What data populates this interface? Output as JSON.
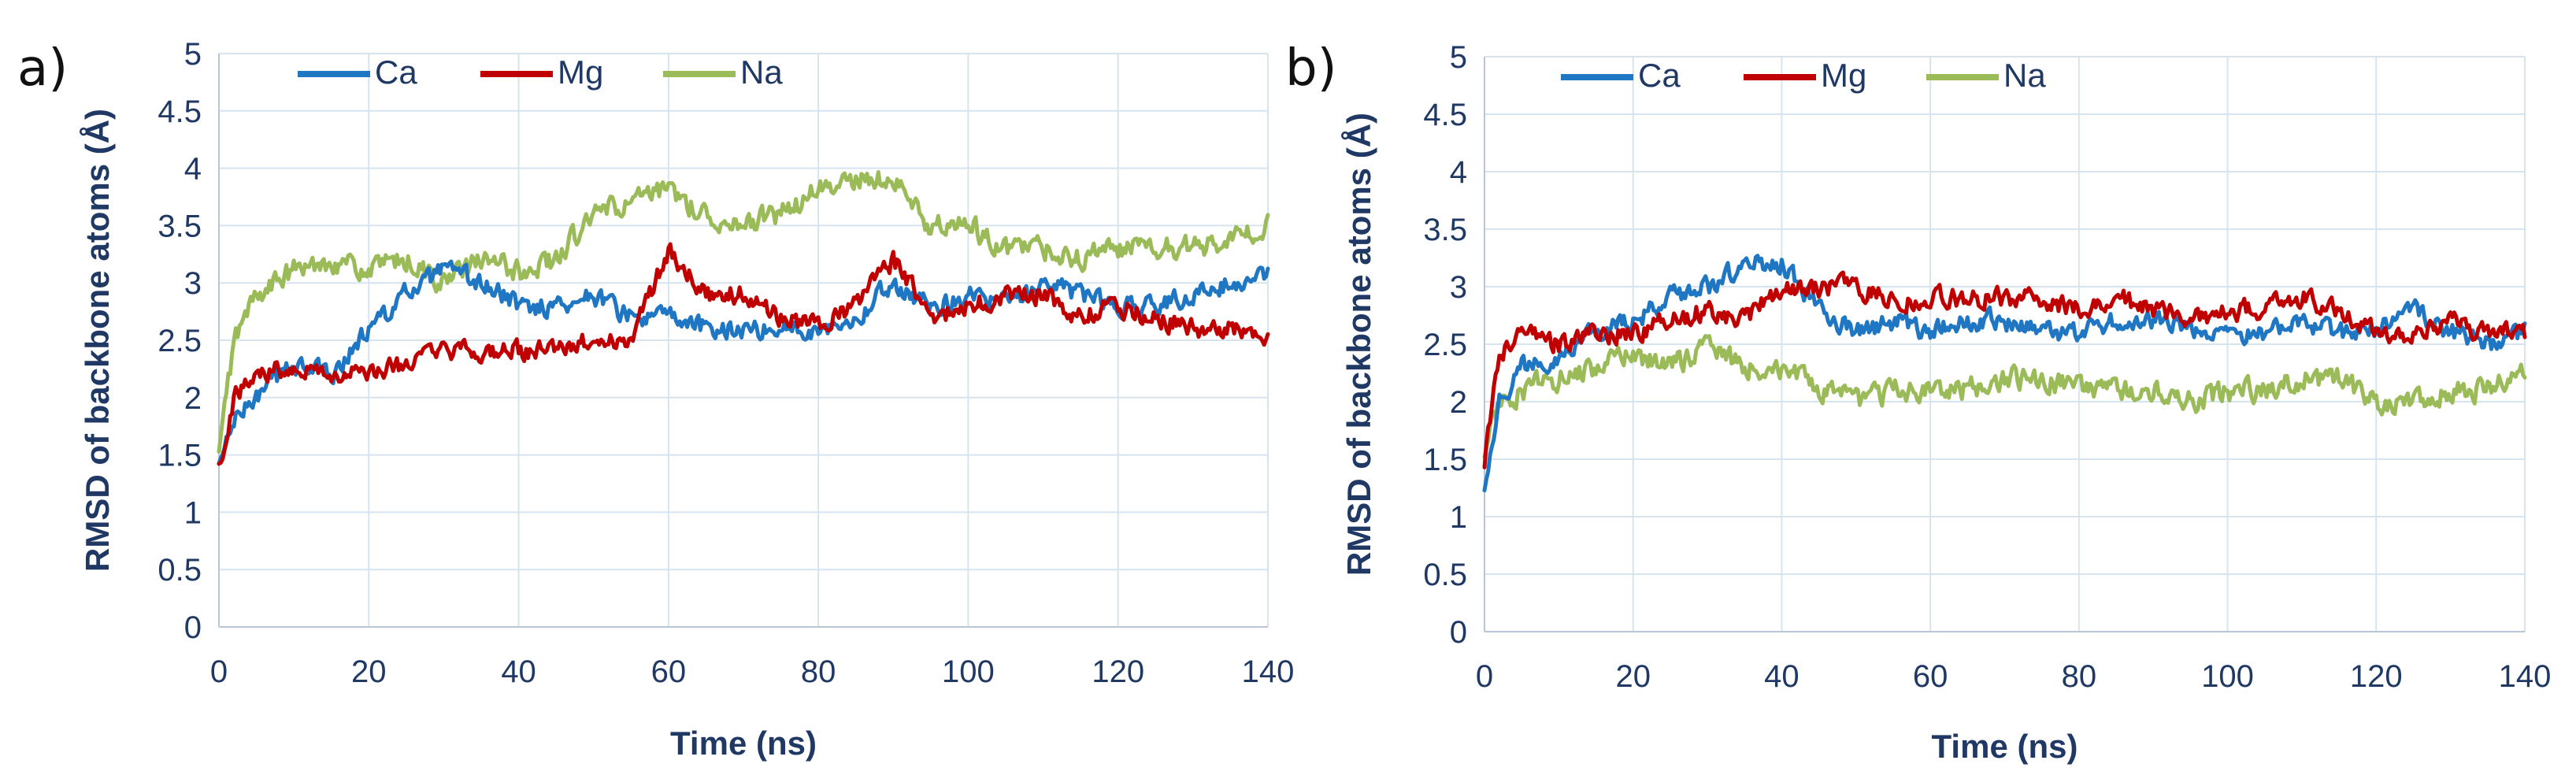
{
  "chart_data": [
    {
      "type": "line",
      "panel_label": "a)",
      "xlabel": "Time (ns)",
      "ylabel": "RMSD of backbone atoms (Å)",
      "xlim": [
        0,
        140
      ],
      "ylim": [
        0,
        5
      ],
      "xticks": [
        0,
        20,
        40,
        60,
        80,
        100,
        120,
        140
      ],
      "yticks": [
        0,
        0.5,
        1,
        1.5,
        2,
        2.5,
        3,
        3.5,
        4,
        4.5,
        5
      ],
      "grid": true,
      "legend_position": "top-left",
      "x": [
        0,
        2,
        5,
        10,
        15,
        20,
        25,
        30,
        35,
        40,
        45,
        50,
        55,
        60,
        65,
        70,
        75,
        80,
        85,
        90,
        95,
        100,
        105,
        110,
        115,
        120,
        125,
        130,
        135,
        140
      ],
      "series": [
        {
          "name": "Ca",
          "color": "#1f77c4",
          "values": [
            1.4,
            1.8,
            2.0,
            2.3,
            2.2,
            2.6,
            2.9,
            3.1,
            3.0,
            2.8,
            2.8,
            2.9,
            2.7,
            2.7,
            2.6,
            2.6,
            2.6,
            2.6,
            2.7,
            3.0,
            2.8,
            2.9,
            2.8,
            3.0,
            2.9,
            2.8,
            2.8,
            2.9,
            3.0,
            3.1
          ]
        },
        {
          "name": "Mg",
          "color": "#c00000",
          "values": [
            1.4,
            2.0,
            2.2,
            2.3,
            2.2,
            2.2,
            2.3,
            2.4,
            2.4,
            2.4,
            2.4,
            2.5,
            2.5,
            3.3,
            2.9,
            2.9,
            2.7,
            2.6,
            2.8,
            3.2,
            2.7,
            2.8,
            2.9,
            2.9,
            2.7,
            2.8,
            2.7,
            2.6,
            2.6,
            2.5
          ]
        },
        {
          "name": "Na",
          "color": "#9bbb59",
          "values": [
            1.5,
            2.5,
            2.9,
            3.1,
            3.2,
            3.1,
            3.2,
            3.0,
            3.2,
            3.1,
            3.2,
            3.6,
            3.7,
            3.8,
            3.6,
            3.5,
            3.6,
            3.8,
            3.9,
            3.9,
            3.5,
            3.5,
            3.3,
            3.3,
            3.2,
            3.3,
            3.3,
            3.3,
            3.4,
            3.5
          ]
        }
      ]
    },
    {
      "type": "line",
      "panel_label": "b)",
      "xlabel": "Time (ns)",
      "ylabel": "RMSD of backbone atoms (Å)",
      "xlim": [
        0,
        140
      ],
      "ylim": [
        0,
        5
      ],
      "xticks": [
        0,
        20,
        40,
        60,
        80,
        100,
        120,
        140
      ],
      "yticks": [
        0,
        0.5,
        1,
        1.5,
        2,
        2.5,
        3,
        3.5,
        4,
        4.5,
        5
      ],
      "grid": true,
      "legend_position": "top-left",
      "x": [
        0,
        2,
        5,
        10,
        15,
        20,
        25,
        30,
        35,
        40,
        45,
        50,
        55,
        60,
        65,
        70,
        75,
        80,
        85,
        90,
        95,
        100,
        105,
        110,
        115,
        120,
        125,
        130,
        135,
        140
      ],
      "series": [
        {
          "name": "Ca",
          "color": "#1f77c4",
          "values": [
            1.3,
            2.0,
            2.3,
            2.4,
            2.6,
            2.7,
            2.9,
            3.0,
            3.2,
            3.2,
            2.8,
            2.6,
            2.7,
            2.6,
            2.7,
            2.7,
            2.6,
            2.6,
            2.7,
            2.7,
            2.6,
            2.6,
            2.6,
            2.7,
            2.6,
            2.6,
            2.8,
            2.6,
            2.5,
            2.6
          ]
        },
        {
          "name": "Mg",
          "color": "#c00000",
          "values": [
            1.5,
            2.4,
            2.6,
            2.5,
            2.6,
            2.6,
            2.7,
            2.8,
            2.7,
            3.0,
            3.0,
            3.0,
            2.9,
            2.9,
            2.9,
            2.9,
            2.9,
            2.8,
            2.9,
            2.8,
            2.7,
            2.8,
            2.8,
            2.9,
            2.8,
            2.6,
            2.6,
            2.7,
            2.6,
            2.6
          ]
        },
        {
          "name": "Na",
          "color": "#9bbb59",
          "values": [
            1.6,
            2.0,
            2.1,
            2.2,
            2.3,
            2.4,
            2.3,
            2.5,
            2.3,
            2.3,
            2.1,
            2.0,
            2.1,
            2.1,
            2.1,
            2.2,
            2.2,
            2.1,
            2.1,
            2.1,
            2.0,
            2.1,
            2.1,
            2.2,
            2.2,
            2.0,
            2.0,
            2.1,
            2.1,
            2.3
          ]
        }
      ]
    }
  ]
}
